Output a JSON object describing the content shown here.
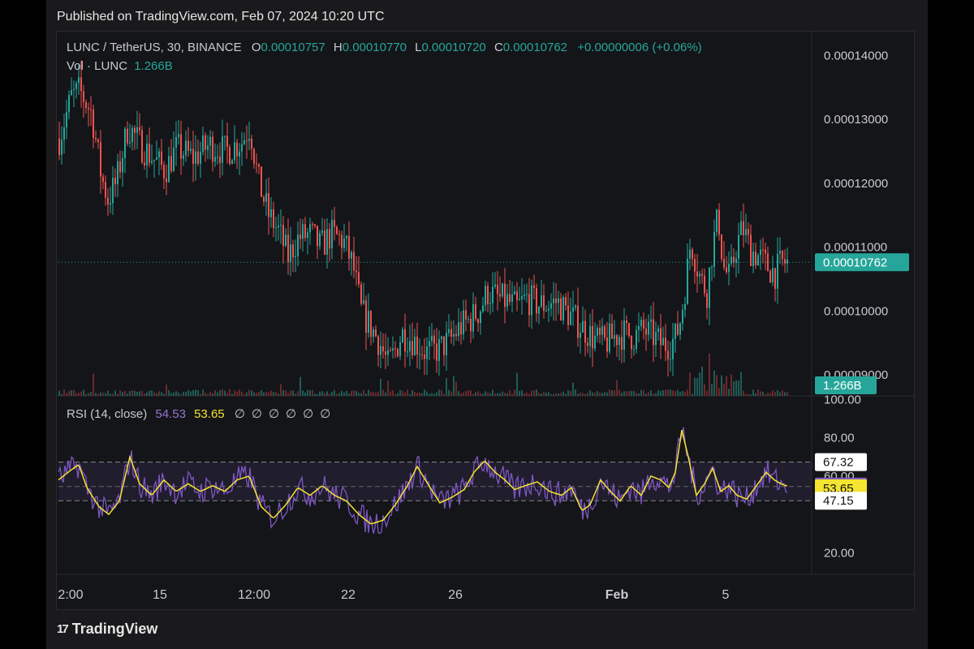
{
  "header": {
    "published": "Published on TradingView.com, Feb 07, 2024 10:20 UTC"
  },
  "footer": {
    "brand": "TradingView",
    "mark": "17"
  },
  "legend": {
    "symbol": "LUNC / TetherUS, 30, BINANCE",
    "o_label": "O",
    "o_value": "0.00010757",
    "h_label": "H",
    "h_value": "0.00010770",
    "l_label": "L",
    "l_value": "0.00010720",
    "c_label": "C",
    "c_value": "0.00010762",
    "change": "+0.00000006 (+0.06%)",
    "vol_label": "Vol · LUNC",
    "vol_value": "1.266B"
  },
  "rsi_legend": {
    "label": "RSI (14, close)",
    "rsi_value": "54.53",
    "ma_value": "53.65",
    "empties": [
      "∅",
      "∅",
      "∅",
      "∅",
      "∅",
      "∅"
    ]
  },
  "colors": {
    "up": "#26a69a",
    "down": "#ef5350",
    "rsi": "#7e57c2",
    "rsi_ma": "#f5e430",
    "bg": "#141519"
  },
  "chart_data": {
    "type": "candlestick",
    "price_axis": {
      "ticks": [
        "0.00014000",
        "0.00013000",
        "0.00012000",
        "0.00011000",
        "0.00010000",
        "0.00009000"
      ],
      "ylim": [
        8.67e-05,
        0.0001436
      ]
    },
    "last_price": "0.00010762",
    "volume_tag": "1.266B",
    "x_ticks": [
      "2:00",
      "15",
      "12:00",
      "22",
      "26",
      "Feb",
      "5"
    ],
    "price_path": [
      [
        0,
        0.000127
      ],
      [
        15,
        0.0001335
      ],
      [
        25,
        0.0001345
      ],
      [
        40,
        0.000131
      ],
      [
        52,
        0.000121
      ],
      [
        60,
        0.0001175
      ],
      [
        70,
        0.00012
      ],
      [
        85,
        0.000129
      ],
      [
        100,
        0.000126
      ],
      [
        115,
        0.000124
      ],
      [
        130,
        0.000122
      ],
      [
        145,
        0.0001255
      ],
      [
        165,
        0.000124
      ],
      [
        185,
        0.000126
      ],
      [
        205,
        0.000125
      ],
      [
        225,
        0.0001265
      ],
      [
        235,
        0.000129
      ],
      [
        245,
        0.0001205
      ],
      [
        258,
        0.000115
      ],
      [
        270,
        0.0001125
      ],
      [
        282,
        0.0001085
      ],
      [
        295,
        0.0001115
      ],
      [
        310,
        0.000112
      ],
      [
        322,
        0.00011
      ],
      [
        335,
        0.000112
      ],
      [
        350,
        0.000111
      ],
      [
        362,
        0.000107
      ],
      [
        372,
        0.0001
      ],
      [
        384,
        9.75e-05
      ],
      [
        395,
        9.5e-05
      ],
      [
        405,
        9.15e-05
      ],
      [
        413,
        9.35e-05
      ],
      [
        422,
        9.65e-05
      ],
      [
        436,
        9.55e-05
      ],
      [
        452,
        9.35e-05
      ],
      [
        468,
        9.4e-05
      ],
      [
        482,
        9.55e-05
      ],
      [
        494,
        9.75e-05
      ],
      [
        505,
        9.85e-05
      ],
      [
        517,
        0.0001
      ],
      [
        528,
        0.000103
      ],
      [
        540,
        0.000102
      ],
      [
        552,
        0.0001015
      ],
      [
        564,
        0.0001005
      ],
      [
        576,
        0.000102
      ],
      [
        590,
        0.000101
      ],
      [
        602,
        0.000101
      ],
      [
        613,
        0.0001015
      ],
      [
        624,
        0.0001
      ],
      [
        636,
        9.85e-05
      ],
      [
        648,
        9.7e-05
      ],
      [
        660,
        9.55e-05
      ],
      [
        672,
        9.5e-05
      ],
      [
        684,
        9.6e-05
      ],
      [
        696,
        9.65e-05
      ],
      [
        708,
        9.6e-05
      ],
      [
        720,
        9.7e-05
      ],
      [
        732,
        9.6e-05
      ],
      [
        742,
        9.48e-05
      ],
      [
        752,
        9.48e-05
      ],
      [
        760,
        9.6e-05
      ],
      [
        766,
        9.9e-05
      ],
      [
        772,
        0.0001045
      ],
      [
        778,
        0.000111
      ],
      [
        784,
        0.000108
      ],
      [
        790,
        0.000105
      ],
      [
        798,
        0.000103
      ],
      [
        805,
        0.00011
      ],
      [
        812,
        0.000115
      ],
      [
        818,
        0.000107
      ],
      [
        826,
        0.000105
      ],
      [
        834,
        0.00011
      ],
      [
        842,
        0.000113
      ],
      [
        852,
        0.0001095
      ],
      [
        862,
        0.0001085
      ],
      [
        872,
        0.000107
      ],
      [
        882,
        0.000106
      ],
      [
        890,
        0.0001075
      ],
      [
        896,
        0.0001076
      ]
    ],
    "rsi_axis": {
      "ticks": [
        "100.00",
        "80.00",
        "60.00",
        "20.00"
      ],
      "ylim": [
        10,
        101
      ],
      "bands": [
        67.32,
        54.53,
        47.15
      ]
    },
    "rsi_tags": {
      "upper": "67.32",
      "rsi": "54.53",
      "ma": "53.65",
      "lower": "47.15"
    },
    "rsi_path": [
      [
        0,
        58
      ],
      [
        15,
        63
      ],
      [
        25,
        66
      ],
      [
        35,
        54
      ],
      [
        50,
        44
      ],
      [
        62,
        40
      ],
      [
        75,
        47
      ],
      [
        88,
        70
      ],
      [
        100,
        56
      ],
      [
        115,
        50
      ],
      [
        130,
        58
      ],
      [
        145,
        52
      ],
      [
        160,
        56
      ],
      [
        175,
        52
      ],
      [
        190,
        55
      ],
      [
        205,
        52
      ],
      [
        220,
        58
      ],
      [
        235,
        60
      ],
      [
        250,
        44
      ],
      [
        265,
        38
      ],
      [
        280,
        45
      ],
      [
        295,
        54
      ],
      [
        310,
        50
      ],
      [
        325,
        55
      ],
      [
        340,
        50
      ],
      [
        355,
        47
      ],
      [
        370,
        40
      ],
      [
        385,
        35
      ],
      [
        400,
        37
      ],
      [
        415,
        45
      ],
      [
        430,
        55
      ],
      [
        442,
        65
      ],
      [
        455,
        56
      ],
      [
        470,
        46
      ],
      [
        485,
        49
      ],
      [
        500,
        53
      ],
      [
        512,
        62
      ],
      [
        525,
        68
      ],
      [
        538,
        62
      ],
      [
        550,
        58
      ],
      [
        562,
        53
      ],
      [
        575,
        55
      ],
      [
        590,
        57
      ],
      [
        605,
        52
      ],
      [
        620,
        50
      ],
      [
        632,
        54
      ],
      [
        645,
        42
      ],
      [
        655,
        45
      ],
      [
        668,
        58
      ],
      [
        680,
        52
      ],
      [
        692,
        47
      ],
      [
        705,
        55
      ],
      [
        718,
        50
      ],
      [
        730,
        60
      ],
      [
        742,
        58
      ],
      [
        752,
        54
      ],
      [
        760,
        62
      ],
      [
        768,
        84
      ],
      [
        776,
        70
      ],
      [
        786,
        50
      ],
      [
        796,
        56
      ],
      [
        806,
        64
      ],
      [
        816,
        52
      ],
      [
        826,
        55
      ],
      [
        836,
        50
      ],
      [
        848,
        48
      ],
      [
        860,
        55
      ],
      [
        872,
        62
      ],
      [
        882,
        58
      ],
      [
        890,
        56
      ],
      [
        896,
        55
      ]
    ]
  }
}
